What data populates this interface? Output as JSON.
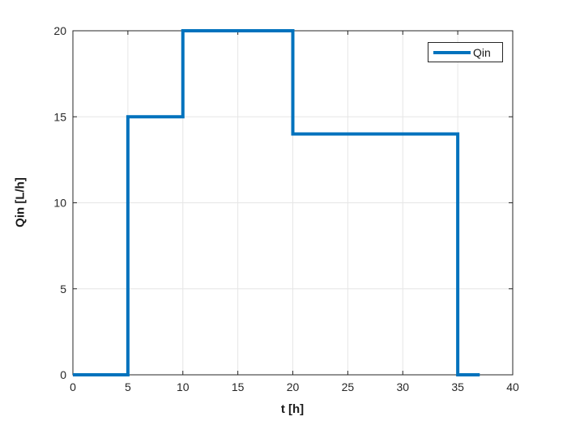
{
  "figure": {
    "background": "#ffffff"
  },
  "chart_data": {
    "type": "line",
    "style": "step",
    "title": "",
    "xlabel": "t [h]",
    "ylabel": "Qin [L/h]",
    "xlim": [
      0,
      40
    ],
    "ylim": [
      0,
      20
    ],
    "xticks": [
      0,
      5,
      10,
      15,
      20,
      25,
      30,
      35,
      40
    ],
    "yticks": [
      0,
      5,
      10,
      15,
      20
    ],
    "grid": true,
    "legend_position": "northeast",
    "series": [
      {
        "name": "Qin",
        "color": "#0072bd",
        "line_width": 4,
        "points": [
          [
            0,
            0
          ],
          [
            5,
            0
          ],
          [
            5,
            15
          ],
          [
            10,
            15
          ],
          [
            10,
            20
          ],
          [
            20,
            20
          ],
          [
            20,
            14
          ],
          [
            35,
            14
          ],
          [
            35,
            0
          ],
          [
            37,
            0
          ]
        ]
      }
    ]
  },
  "colors": {
    "axis": "#262626",
    "grid": "#e6e6e6",
    "background": "#ffffff",
    "label_text": "#1a1a1a"
  }
}
